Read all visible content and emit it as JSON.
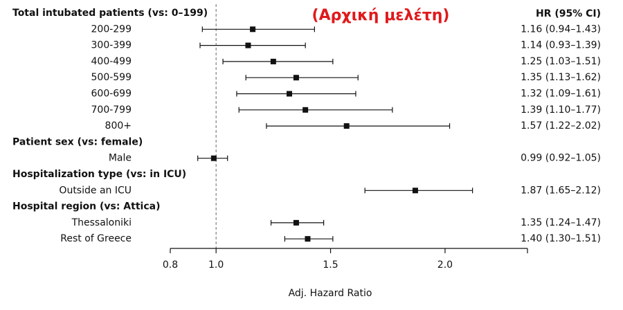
{
  "overlay_title": "(Αρχική μελέτη)",
  "ci_header": "HR (95% CI)",
  "colors": {
    "overlay": "#e0191b",
    "marks": "#111111",
    "refline": "#666666"
  },
  "chart_data": {
    "type": "forest",
    "xlabel": "Adj. Hazard Ratio",
    "xticks": [
      0.8,
      1.0,
      1.5,
      2.0
    ],
    "xtick_labels": [
      "0.8",
      "1.0",
      "1.5",
      "2.0"
    ],
    "xlim": [
      0.8,
      2.36
    ],
    "reference_line": 1.0,
    "groups": [
      {
        "header": "Total intubated patients (vs: 0–199)",
        "rows": [
          {
            "label": "200-299",
            "hr": 1.16,
            "lo": 0.94,
            "hi": 1.43,
            "text": "1.16 (0.94–1.43)"
          },
          {
            "label": "300-399",
            "hr": 1.14,
            "lo": 0.93,
            "hi": 1.39,
            "text": "1.14 (0.93–1.39)"
          },
          {
            "label": "400-499",
            "hr": 1.25,
            "lo": 1.03,
            "hi": 1.51,
            "text": "1.25 (1.03–1.51)"
          },
          {
            "label": "500-599",
            "hr": 1.35,
            "lo": 1.13,
            "hi": 1.62,
            "text": "1.35 (1.13–1.62)"
          },
          {
            "label": "600-699",
            "hr": 1.32,
            "lo": 1.09,
            "hi": 1.61,
            "text": "1.32 (1.09–1.61)"
          },
          {
            "label": "700-799",
            "hr": 1.39,
            "lo": 1.1,
            "hi": 1.77,
            "text": "1.39 (1.10–1.77)"
          },
          {
            "label": "800+",
            "hr": 1.57,
            "lo": 1.22,
            "hi": 2.02,
            "text": "1.57 (1.22–2.02)"
          }
        ]
      },
      {
        "header": "Patient sex (vs: female)",
        "rows": [
          {
            "label": "Male",
            "hr": 0.99,
            "lo": 0.92,
            "hi": 1.05,
            "text": "0.99 (0.92–1.05)"
          }
        ]
      },
      {
        "header": "Hospitalization type (vs: in ICU)",
        "rows": [
          {
            "label": "Outside an ICU",
            "hr": 1.87,
            "lo": 1.65,
            "hi": 2.12,
            "text": "1.87 (1.65–2.12)"
          }
        ]
      },
      {
        "header": "Hospital region (vs: Attica)",
        "rows": [
          {
            "label": "Thessaloniki",
            "hr": 1.35,
            "lo": 1.24,
            "hi": 1.47,
            "text": "1.35 (1.24–1.47)"
          },
          {
            "label": "Rest of Greece",
            "hr": 1.4,
            "lo": 1.3,
            "hi": 1.51,
            "text": "1.40 (1.30–1.51)"
          }
        ]
      }
    ]
  }
}
